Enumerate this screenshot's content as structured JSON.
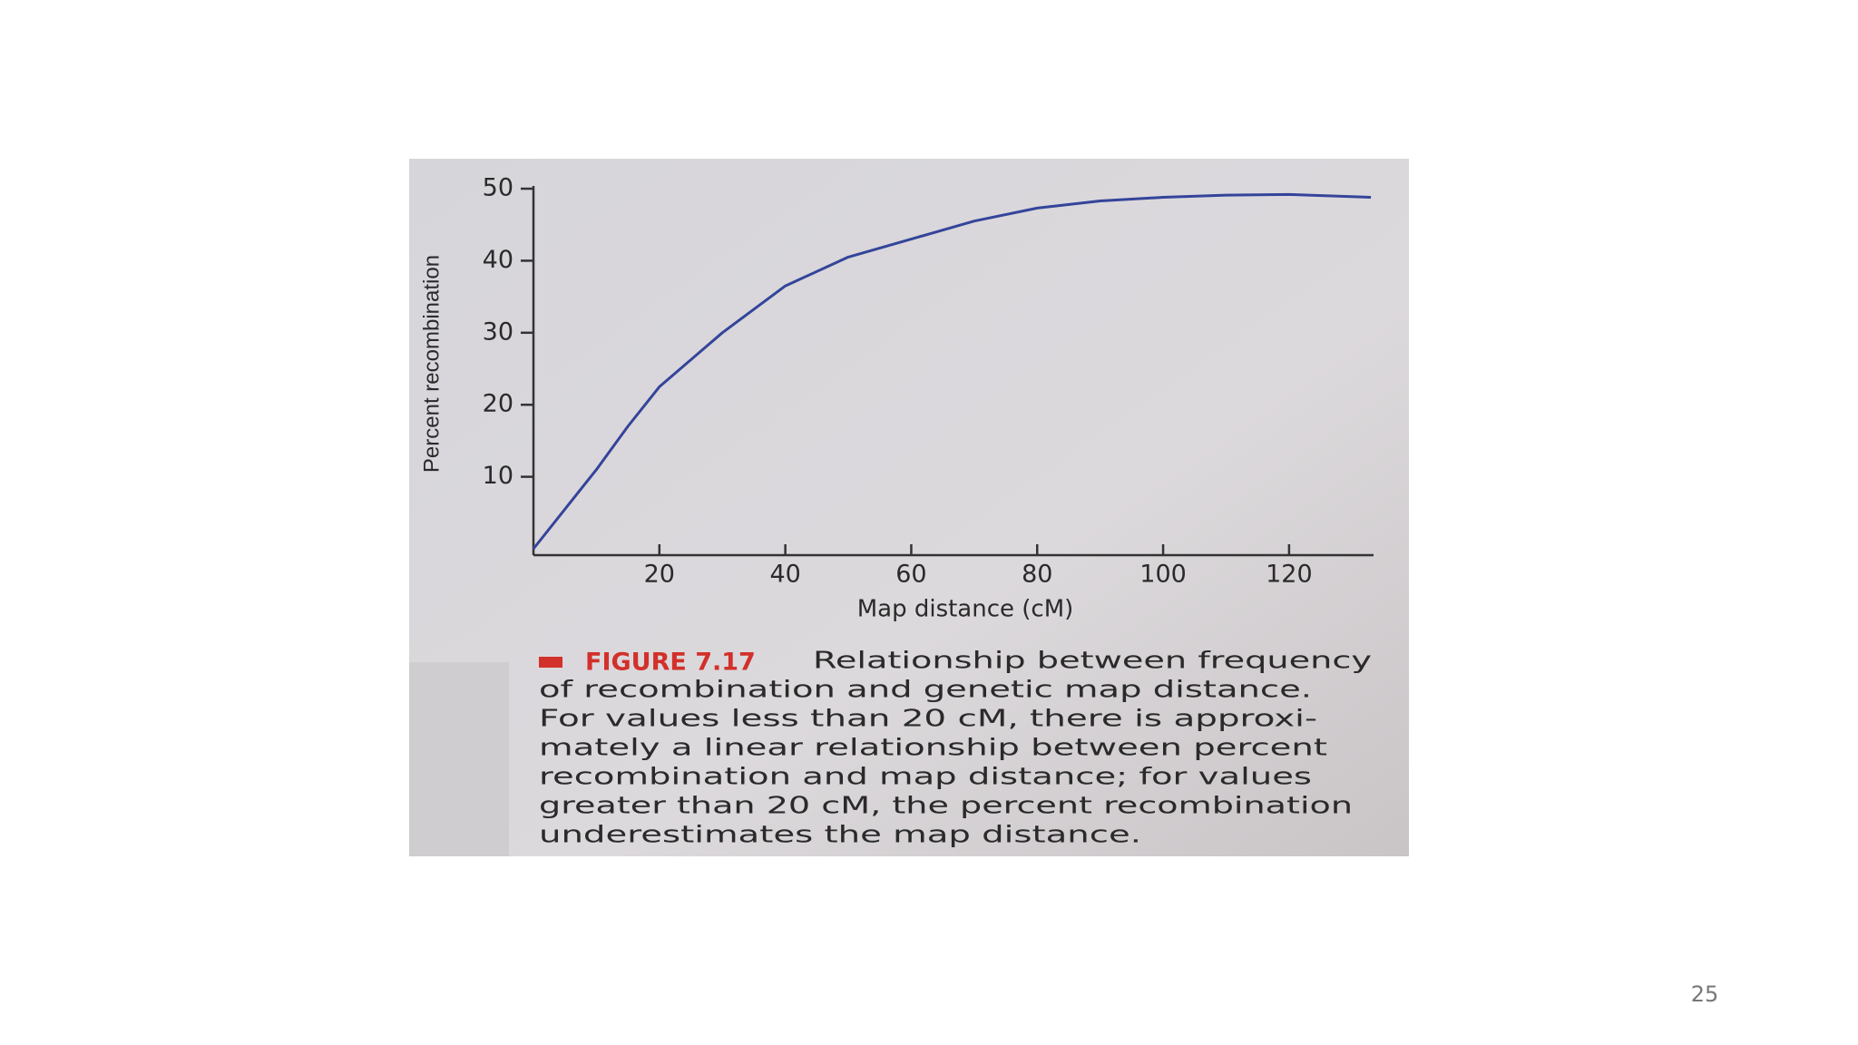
{
  "chart_data": {
    "type": "line",
    "y_label": "Percent recombination",
    "x_label": "Map distance (cM)",
    "x": [
      0,
      5,
      10,
      15,
      20,
      30,
      40,
      50,
      60,
      70,
      80,
      90,
      100,
      110,
      120,
      133
    ],
    "values": [
      0,
      5.5,
      11,
      17,
      22.5,
      30,
      36.5,
      40.5,
      43,
      45.5,
      47.3,
      48.3,
      48.8,
      49.1,
      49.2,
      48.8
    ],
    "color": "#34449a",
    "xlim": [
      0,
      135
    ],
    "ylim": [
      0,
      50
    ],
    "xticks": [
      20,
      40,
      60,
      80,
      100,
      120
    ],
    "yticks": [
      10,
      20,
      30,
      40,
      50
    ],
    "figure_label": "FIGURE 7.17",
    "caption_lines": [
      "Relationship between frequency",
      "of recombination and genetic map distance.",
      "For values less than 20 cM, there is approxi-",
      "mately a linear relationship between percent",
      "recombination and map distance; for values",
      "greater than 20 cM, the percent recombination",
      "underestimates the map distance."
    ]
  },
  "page_number": "25"
}
